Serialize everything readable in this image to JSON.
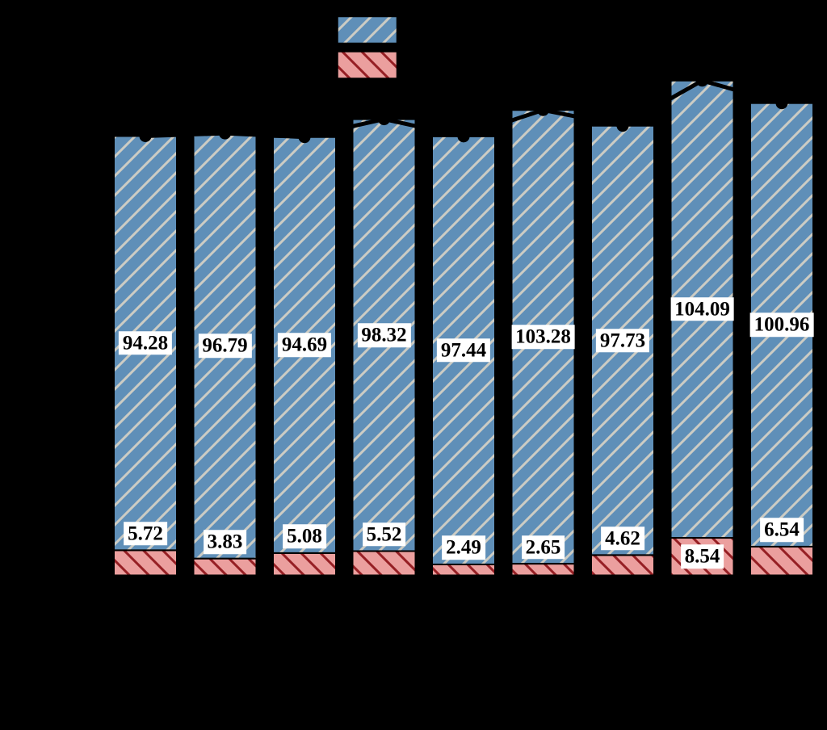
{
  "figure": {
    "background_color": "#000000",
    "note": "axis lines, tick labels and legend text are rendered black on a black/transparent background and are not visible"
  },
  "legend": {
    "position": "top-center",
    "labels_visible": false,
    "swatches": [
      {
        "name": "blue-hatched-swatch",
        "fill": "#5f8fb8",
        "hatch": "/",
        "hatch_color": "#ccccc4"
      },
      {
        "name": "red-hatched-swatch",
        "fill": "#eb9f9e",
        "hatch": "\\",
        "hatch_color": "#961f24"
      }
    ]
  },
  "chart_data": {
    "type": "bar",
    "stacked": true,
    "orientation": "vertical",
    "title": "",
    "xlabel": "",
    "ylabel": "",
    "categories": [
      "",
      "",
      "",
      "",
      "",
      "",
      "",
      "",
      ""
    ],
    "grid": false,
    "ylim_estimated": [
      0,
      120
    ],
    "bar_edge_color": "#000000",
    "series": [
      {
        "name": "upper-blue-hatched-segment",
        "fill": "#5f8fb8",
        "hatch": "/",
        "hatch_color": "#ccccc4",
        "values": [
          94.28,
          96.79,
          94.69,
          98.32,
          97.44,
          103.28,
          97.73,
          104.09,
          100.96
        ]
      },
      {
        "name": "lower-red-hatched-segment",
        "fill": "#eb9f9e",
        "hatch": "\\",
        "hatch_color": "#961f24",
        "values": [
          5.72,
          3.83,
          5.08,
          5.52,
          2.49,
          2.65,
          4.62,
          8.54,
          6.54
        ]
      }
    ],
    "value_labels": {
      "style": "black bold serif text in white boxes",
      "blue": [
        "94.28",
        "96.79",
        "94.69",
        "98.32",
        "97.44",
        "103.28",
        "97.73",
        "104.09",
        "100.96"
      ],
      "red": [
        "5.72",
        "3.83",
        "5.08",
        "5.52",
        "2.49",
        "2.65",
        "4.62",
        "8.54",
        "6.54"
      ]
    },
    "line_overlay": {
      "type": "line",
      "description": "black polyline with round black markers connecting the tops of the stacked bars",
      "color": "#000000",
      "marker": "circle",
      "marker_color": "#000000",
      "totals": [
        100.0,
        100.62,
        99.77,
        103.84,
        99.93,
        105.93,
        102.35,
        112.63,
        107.5
      ]
    }
  }
}
